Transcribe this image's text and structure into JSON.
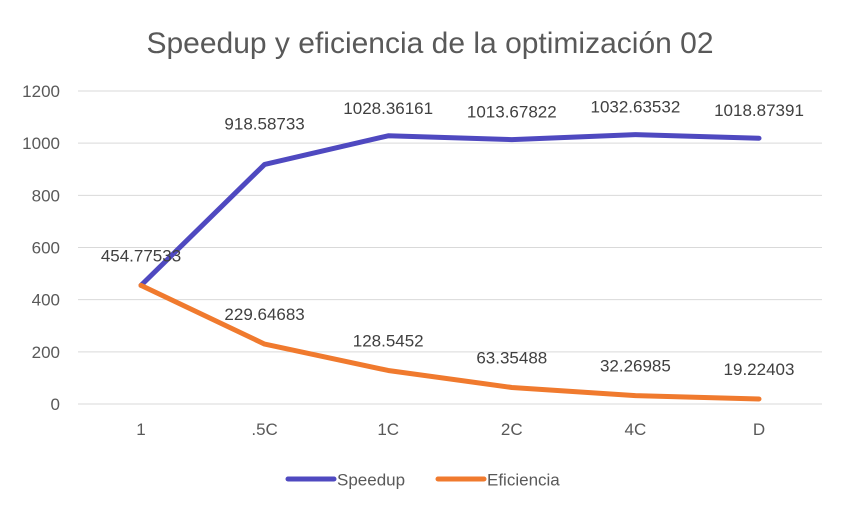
{
  "chart_data": {
    "type": "line",
    "title": "Speedup y eficiencia de la optimización 02",
    "categories": [
      "1",
      ".5C",
      "1C",
      "2C",
      "4C",
      "D"
    ],
    "ylim": [
      0,
      1200
    ],
    "yticks": [
      0,
      200,
      400,
      600,
      800,
      1000,
      1200
    ],
    "grid": true,
    "legend_position": "bottom",
    "series": [
      {
        "name": "Speedup",
        "color": "#4F49C0",
        "values": [
          454.77533,
          918.58733,
          1028.36161,
          1013.67822,
          1032.63532,
          1018.87391
        ],
        "labels": [
          "454.77533",
          "918.58733",
          "1028.36161",
          "1013.67822",
          "1032.63532",
          "1018.87391"
        ]
      },
      {
        "name": "Eficiencia",
        "color": "#F07A2E",
        "values": [
          454.77533,
          229.64683,
          128.5452,
          63.35488,
          32.26985,
          19.22403
        ],
        "labels": [
          "",
          "229.64683",
          "128.5452",
          "63.35488",
          "32.26985",
          "19.22403"
        ]
      }
    ]
  }
}
